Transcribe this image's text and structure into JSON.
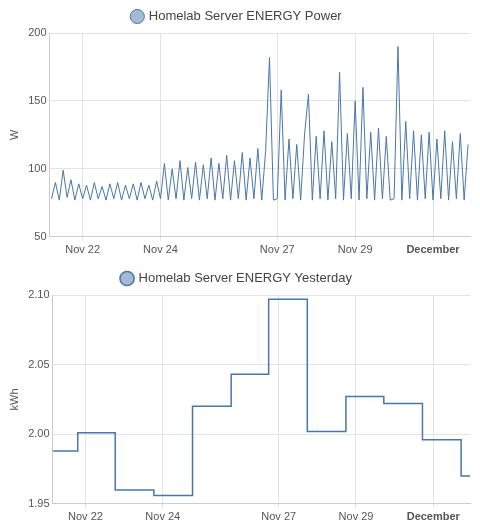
{
  "chart_data": [
    {
      "type": "line",
      "x": [
        21.2,
        21.3,
        21.4,
        21.5,
        21.6,
        21.7,
        21.8,
        21.9,
        22.0,
        22.1,
        22.2,
        22.3,
        22.4,
        22.5,
        22.6,
        22.7,
        22.8,
        22.9,
        23.0,
        23.1,
        23.2,
        23.3,
        23.4,
        23.5,
        23.6,
        23.7,
        23.8,
        23.9,
        24.0,
        24.1,
        24.2,
        24.3,
        24.4,
        24.5,
        24.6,
        24.7,
        24.8,
        24.9,
        25.0,
        25.1,
        25.2,
        25.3,
        25.4,
        25.5,
        25.6,
        25.7,
        25.8,
        25.9,
        26.0,
        26.1,
        26.2,
        26.3,
        26.4,
        26.5,
        26.6,
        26.7,
        26.8,
        26.9,
        27.0,
        27.1,
        27.2,
        27.3,
        27.4,
        27.5,
        27.6,
        27.7,
        27.8,
        27.9,
        28.0,
        28.1,
        28.2,
        28.3,
        28.4,
        28.5,
        28.6,
        28.7,
        28.8,
        28.9,
        29.0,
        29.1,
        29.2,
        29.3,
        29.4,
        29.5,
        29.6,
        29.7,
        29.8,
        29.9,
        30.0,
        30.1,
        30.2,
        30.3,
        30.4,
        30.5,
        30.6,
        30.7,
        30.8,
        30.9,
        31.0,
        31.1,
        31.2,
        31.3,
        31.4,
        31.5,
        31.6,
        31.7,
        31.8,
        31.9
      ],
      "series": [
        {
          "name": "Homelab Server ENERGY Power",
          "color": "#4a76a8",
          "values": [
            78,
            90,
            77,
            99,
            79,
            92,
            77,
            89,
            78,
            88,
            77,
            90,
            78,
            87,
            77,
            89,
            78,
            90,
            77,
            88,
            78,
            89,
            77,
            90,
            78,
            88,
            77,
            91,
            78,
            104,
            77,
            100,
            78,
            106,
            77,
            101,
            78,
            105,
            77,
            103,
            78,
            108,
            77,
            104,
            78,
            110,
            77,
            106,
            78,
            112,
            77,
            108,
            78,
            115,
            77,
            113,
            182,
            77,
            78,
            158,
            77,
            122,
            78,
            118,
            77,
            125,
            155,
            77,
            124,
            78,
            128,
            77,
            120,
            78,
            171,
            77,
            126,
            78,
            150,
            77,
            160,
            78,
            127,
            77,
            130,
            78,
            124,
            77,
            78,
            190,
            77,
            135,
            78,
            128,
            77,
            125,
            78,
            127,
            77,
            122,
            78,
            128,
            77,
            120,
            78,
            126,
            77,
            118
          ]
        }
      ],
      "xlim": [
        21.15,
        31.95
      ],
      "xticks": [
        {
          "value": 22,
          "label": "Nov 22"
        },
        {
          "value": 24,
          "label": "Nov 24"
        },
        {
          "value": 27,
          "label": "Nov 27"
        },
        {
          "value": 29,
          "label": "Nov 29"
        },
        {
          "value": 31,
          "label": "December"
        }
      ],
      "ylim": [
        50,
        200
      ],
      "yticks": [
        50,
        100,
        150,
        200
      ],
      "ylabel": "W",
      "grid": true,
      "legend": "top"
    },
    {
      "type": "line",
      "line_style": "step",
      "x": [
        21.15,
        21.8,
        22.77,
        23.77,
        24.77,
        25.77,
        26.74,
        27.74,
        28.74,
        29.72,
        30.72,
        31.72,
        31.95
      ],
      "series": [
        {
          "name": "Homelab Server ENERGY Yesterday",
          "color": "#4a76a8",
          "values": [
            1.988,
            2.001,
            1.96,
            1.956,
            2.02,
            2.043,
            2.097,
            2.002,
            2.027,
            2.022,
            1.996,
            1.97,
            1.97
          ]
        }
      ],
      "xlim": [
        21.15,
        31.95
      ],
      "xticks": [
        {
          "value": 22,
          "label": "Nov 22"
        },
        {
          "value": 24,
          "label": "Nov 24"
        },
        {
          "value": 27,
          "label": "Nov 27"
        },
        {
          "value": 29,
          "label": "Nov 29"
        },
        {
          "value": 31,
          "label": "December"
        }
      ],
      "ylim": [
        1.95,
        2.1
      ],
      "yticks": [
        1.95,
        {
          "value": 2,
          "label": "2.00"
        },
        2.05,
        {
          "value": 2.1,
          "label": "2.10"
        }
      ],
      "ylabel": "kWh",
      "grid": true,
      "legend": "top"
    }
  ]
}
